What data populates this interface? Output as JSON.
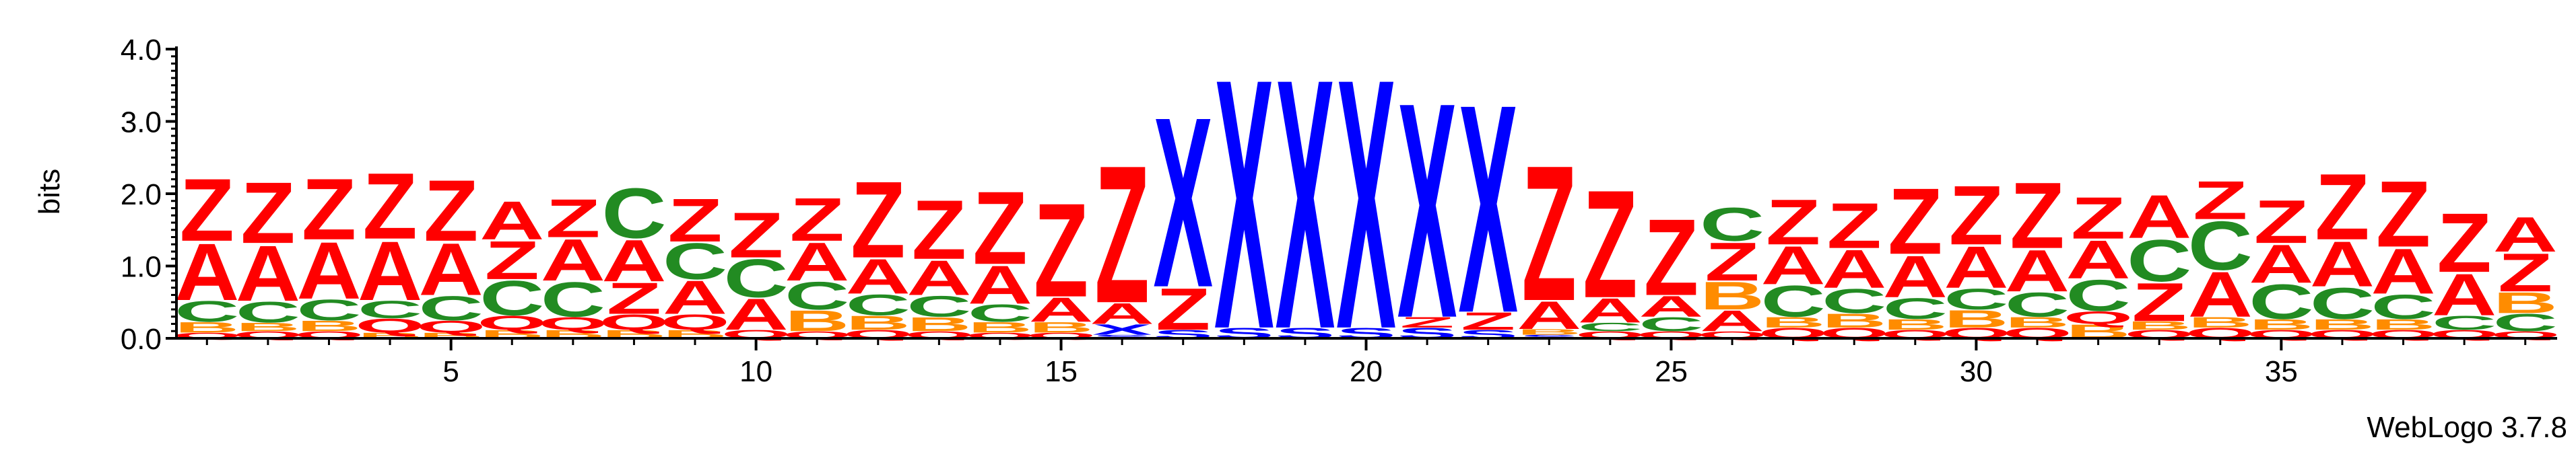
{
  "chart_data": {
    "type": "sequence-logo",
    "ylabel": "bits",
    "ylim": [
      0,
      4.0
    ],
    "yticks": [
      "0.0",
      "1.0",
      "2.0",
      "3.0",
      "4.0"
    ],
    "xlim": [
      1,
      39
    ],
    "xticks": [
      "5",
      "10",
      "15",
      "20",
      "25",
      "30",
      "35"
    ],
    "footer": "WebLogo 3.7.8",
    "colors": {
      "Z": "#ff0000",
      "A": "#ff0000",
      "C": "#228b22",
      "B": "#ff8c00",
      "Q": "#ff0000",
      "X": "#0000ff",
      "S": "#0000ff"
    },
    "columns": [
      {
        "pos": 1,
        "letters": [
          [
            "Q",
            0.08
          ],
          [
            "B",
            0.15
          ],
          [
            "C",
            0.3
          ],
          [
            "A",
            0.82
          ],
          [
            "Z",
            0.9
          ]
        ]
      },
      {
        "pos": 2,
        "letters": [
          [
            "Q",
            0.1
          ],
          [
            "B",
            0.12
          ],
          [
            "C",
            0.3
          ],
          [
            "A",
            0.8
          ],
          [
            "Z",
            0.88
          ]
        ]
      },
      {
        "pos": 3,
        "letters": [
          [
            "Q",
            0.1
          ],
          [
            "B",
            0.15
          ],
          [
            "C",
            0.3
          ],
          [
            "A",
            0.82
          ],
          [
            "Z",
            0.88
          ]
        ]
      },
      {
        "pos": 4,
        "letters": [
          [
            "B",
            0.08
          ],
          [
            "Q",
            0.2
          ],
          [
            "C",
            0.25
          ],
          [
            "A",
            0.85
          ],
          [
            "Z",
            0.95
          ]
        ]
      },
      {
        "pos": 5,
        "letters": [
          [
            "B",
            0.08
          ],
          [
            "Q",
            0.17
          ],
          [
            "C",
            0.35
          ],
          [
            "A",
            0.75
          ],
          [
            "Z",
            0.88
          ]
        ]
      },
      {
        "pos": 6,
        "letters": [
          [
            "B",
            0.12
          ],
          [
            "Q",
            0.2
          ],
          [
            "C",
            0.5
          ],
          [
            "Z",
            0.55
          ],
          [
            "A",
            0.55
          ]
        ]
      },
      {
        "pos": 7,
        "letters": [
          [
            "B",
            0.12
          ],
          [
            "Q",
            0.18
          ],
          [
            "C",
            0.5
          ],
          [
            "A",
            0.6
          ],
          [
            "Z",
            0.55
          ]
        ]
      },
      {
        "pos": 8,
        "letters": [
          [
            "B",
            0.12
          ],
          [
            "Q",
            0.22
          ],
          [
            "Z",
            0.45
          ],
          [
            "A",
            0.6
          ],
          [
            "C",
            0.72
          ]
        ]
      },
      {
        "pos": 9,
        "letters": [
          [
            "B",
            0.12
          ],
          [
            "Q",
            0.22
          ],
          [
            "A",
            0.48
          ],
          [
            "C",
            0.52
          ],
          [
            "Z",
            0.62
          ]
        ]
      },
      {
        "pos": 10,
        "letters": [
          [
            "Q",
            0.12
          ],
          [
            "A",
            0.45
          ],
          [
            "C",
            0.55
          ],
          [
            "Z",
            0.65
          ]
        ]
      },
      {
        "pos": 11,
        "letters": [
          [
            "Q",
            0.1
          ],
          [
            "B",
            0.3
          ],
          [
            "C",
            0.4
          ],
          [
            "A",
            0.55
          ],
          [
            "Z",
            0.62
          ]
        ]
      },
      {
        "pos": 12,
        "letters": [
          [
            "Q",
            0.12
          ],
          [
            "B",
            0.2
          ],
          [
            "C",
            0.3
          ],
          [
            "A",
            0.5
          ],
          [
            "Z",
            1.1
          ]
        ]
      },
      {
        "pos": 13,
        "letters": [
          [
            "Q",
            0.1
          ],
          [
            "B",
            0.2
          ],
          [
            "C",
            0.3
          ],
          [
            "A",
            0.5
          ],
          [
            "Z",
            0.85
          ]
        ]
      },
      {
        "pos": 14,
        "letters": [
          [
            "Q",
            0.08
          ],
          [
            "B",
            0.15
          ],
          [
            "C",
            0.25
          ],
          [
            "A",
            0.55
          ],
          [
            "Z",
            1.05
          ]
        ]
      },
      {
        "pos": 15,
        "letters": [
          [
            "Q",
            0.08
          ],
          [
            "B",
            0.15
          ],
          [
            "A",
            0.35
          ],
          [
            "Z",
            1.35
          ]
        ]
      },
      {
        "pos": 16,
        "letters": [
          [
            "S",
            0.05
          ],
          [
            "X",
            0.15
          ],
          [
            "A",
            0.3
          ],
          [
            "Z",
            1.98
          ]
        ]
      },
      {
        "pos": 17,
        "letters": [
          [
            "S",
            0.12
          ],
          [
            "Z",
            0.6
          ],
          [
            "X",
            2.45
          ]
        ]
      },
      {
        "pos": 18,
        "letters": [
          [
            "S",
            0.15
          ],
          [
            "X",
            3.6
          ]
        ]
      },
      {
        "pos": 19,
        "letters": [
          [
            "S",
            0.15
          ],
          [
            "X",
            3.6
          ]
        ]
      },
      {
        "pos": 20,
        "letters": [
          [
            "S",
            0.15
          ],
          [
            "X",
            3.6
          ]
        ]
      },
      {
        "pos": 21,
        "letters": [
          [
            "S",
            0.15
          ],
          [
            "Z",
            0.15
          ],
          [
            "X",
            3.1
          ]
        ]
      },
      {
        "pos": 22,
        "letters": [
          [
            "S",
            0.12
          ],
          [
            "Z",
            0.25
          ],
          [
            "X",
            3.0
          ]
        ]
      },
      {
        "pos": 23,
        "letters": [
          [
            "S",
            0.05
          ],
          [
            "B",
            0.08
          ],
          [
            "A",
            0.4
          ],
          [
            "Z",
            1.95
          ]
        ]
      },
      {
        "pos": 24,
        "letters": [
          [
            "Q",
            0.1
          ],
          [
            "C",
            0.12
          ],
          [
            "A",
            0.35
          ],
          [
            "Z",
            1.55
          ]
        ]
      },
      {
        "pos": 25,
        "letters": [
          [
            "Q",
            0.1
          ],
          [
            "C",
            0.2
          ],
          [
            "A",
            0.3
          ],
          [
            "Z",
            1.1
          ]
        ]
      },
      {
        "pos": 26,
        "letters": [
          [
            "Q",
            0.1
          ],
          [
            "A",
            0.3
          ],
          [
            "B",
            0.4
          ],
          [
            "Z",
            0.55
          ],
          [
            "C",
            0.48
          ]
        ]
      },
      {
        "pos": 27,
        "letters": [
          [
            "Q",
            0.15
          ],
          [
            "B",
            0.15
          ],
          [
            "C",
            0.45
          ],
          [
            "A",
            0.55
          ],
          [
            "Z",
            0.65
          ]
        ]
      },
      {
        "pos": 28,
        "letters": [
          [
            "Q",
            0.15
          ],
          [
            "B",
            0.2
          ],
          [
            "C",
            0.35
          ],
          [
            "A",
            0.55
          ],
          [
            "Z",
            0.65
          ]
        ]
      },
      {
        "pos": 29,
        "letters": [
          [
            "Q",
            0.12
          ],
          [
            "B",
            0.15
          ],
          [
            "C",
            0.3
          ],
          [
            "A",
            0.6
          ],
          [
            "Z",
            0.95
          ]
        ]
      },
      {
        "pos": 30,
        "letters": [
          [
            "Q",
            0.15
          ],
          [
            "B",
            0.25
          ],
          [
            "C",
            0.3
          ],
          [
            "A",
            0.6
          ],
          [
            "Z",
            0.85
          ]
        ]
      },
      {
        "pos": 31,
        "letters": [
          [
            "Q",
            0.15
          ],
          [
            "B",
            0.15
          ],
          [
            "C",
            0.35
          ],
          [
            "A",
            0.6
          ],
          [
            "Z",
            0.95
          ]
        ]
      },
      {
        "pos": 32,
        "letters": [
          [
            "B",
            0.2
          ],
          [
            "Q",
            0.18
          ],
          [
            "C",
            0.45
          ],
          [
            "A",
            0.55
          ],
          [
            "Z",
            0.6
          ]
        ]
      },
      {
        "pos": 33,
        "letters": [
          [
            "Q",
            0.12
          ],
          [
            "B",
            0.12
          ],
          [
            "Z",
            0.55
          ],
          [
            "C",
            0.6
          ],
          [
            "A",
            0.62
          ]
        ]
      },
      {
        "pos": 34,
        "letters": [
          [
            "Q",
            0.15
          ],
          [
            "B",
            0.15
          ],
          [
            "A",
            0.65
          ],
          [
            "C",
            0.7
          ],
          [
            "Z",
            0.55
          ]
        ]
      },
      {
        "pos": 35,
        "letters": [
          [
            "Q",
            0.12
          ],
          [
            "B",
            0.15
          ],
          [
            "C",
            0.5
          ],
          [
            "A",
            0.55
          ],
          [
            "Z",
            0.62
          ]
        ]
      },
      {
        "pos": 36,
        "letters": [
          [
            "Q",
            0.12
          ],
          [
            "B",
            0.15
          ],
          [
            "C",
            0.45
          ],
          [
            "A",
            0.65
          ],
          [
            "Z",
            0.95
          ]
        ]
      },
      {
        "pos": 37,
        "letters": [
          [
            "Q",
            0.12
          ],
          [
            "B",
            0.15
          ],
          [
            "C",
            0.35
          ],
          [
            "A",
            0.65
          ],
          [
            "Z",
            0.95
          ]
        ]
      },
      {
        "pos": 38,
        "letters": [
          [
            "Q",
            0.12
          ],
          [
            "C",
            0.2
          ],
          [
            "A",
            0.6
          ],
          [
            "Z",
            0.85
          ]
        ]
      },
      {
        "pos": 39,
        "letters": [
          [
            "Q",
            0.1
          ],
          [
            "C",
            0.25
          ],
          [
            "B",
            0.3
          ],
          [
            "Z",
            0.55
          ],
          [
            "A",
            0.5
          ]
        ]
      }
    ]
  }
}
